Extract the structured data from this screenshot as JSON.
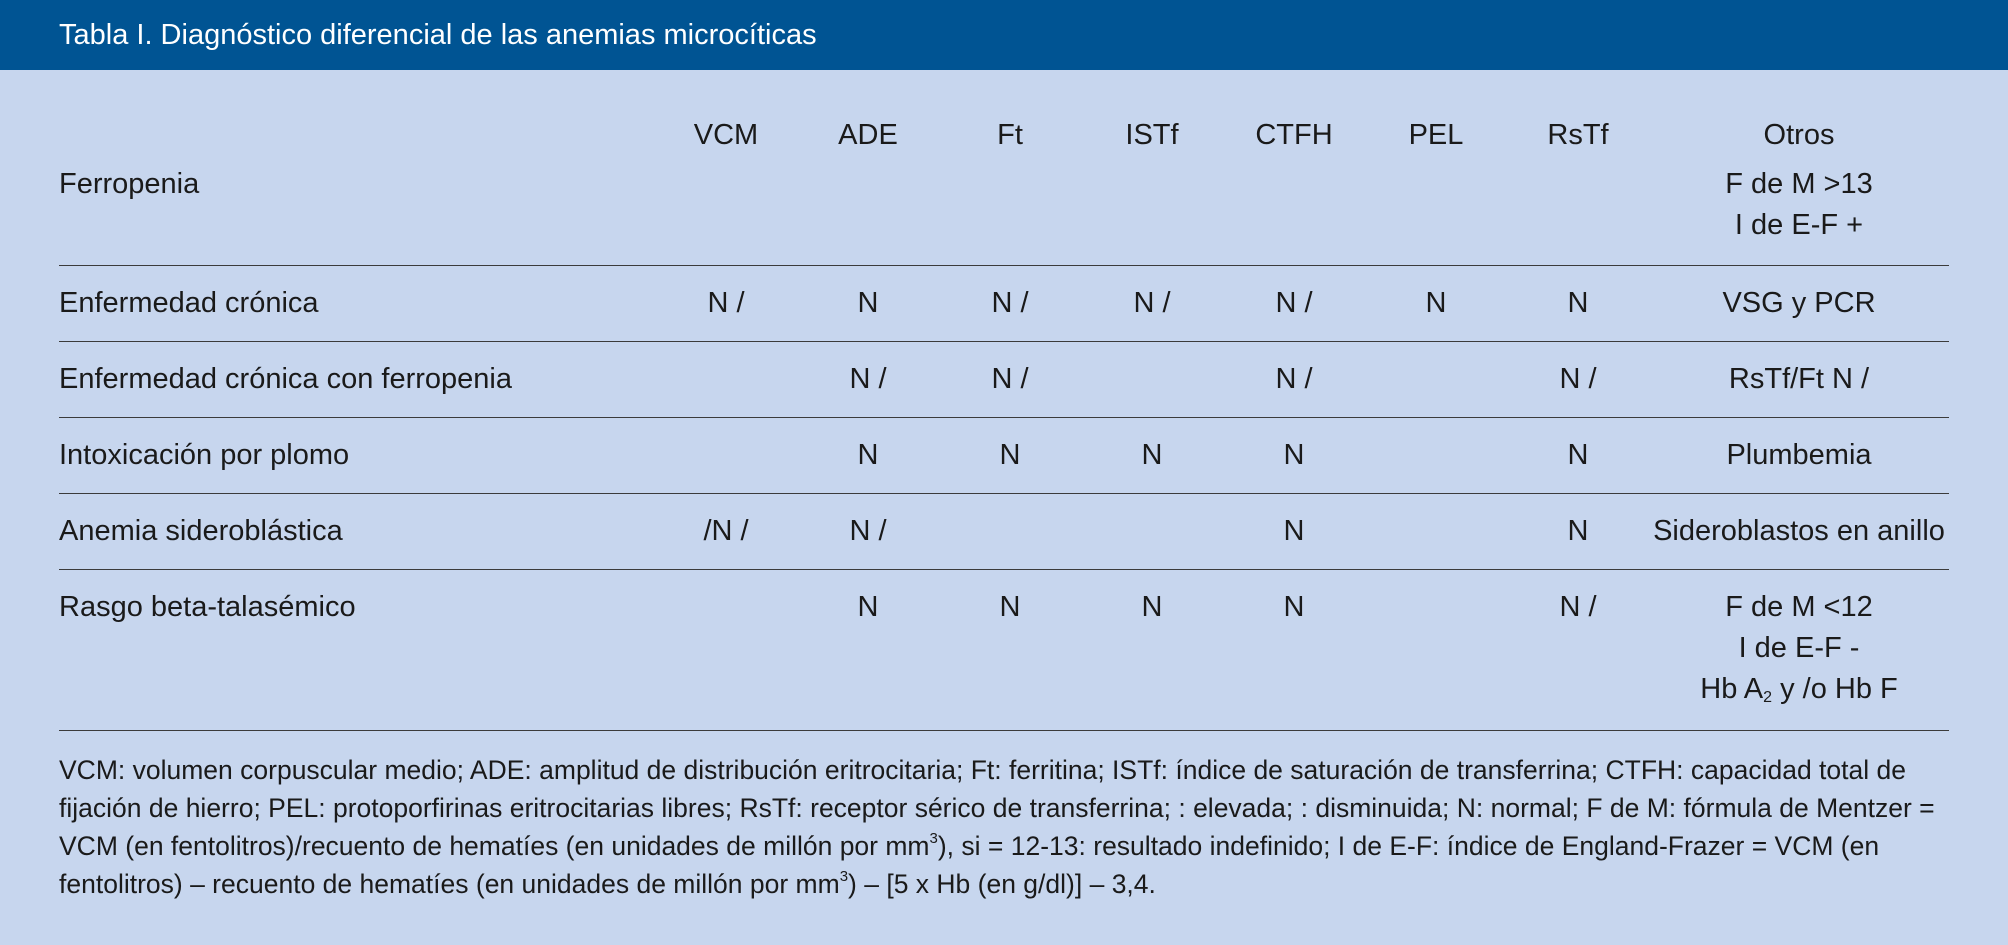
{
  "header": {
    "title": "Tabla I. Diagnóstico diferencial de las anemias microcíticas"
  },
  "table": {
    "columns": [
      "",
      "VCM",
      "ADE",
      "Ft",
      "ISTf",
      "CTFH",
      "PEL",
      "RsTf",
      "Otros"
    ],
    "rows": [
      {
        "label": "Ferropenia",
        "cells": [
          "",
          "",
          "",
          "",
          "",
          "",
          ""
        ],
        "otros": [
          "F de M >13",
          "I de E-F +"
        ]
      },
      {
        "label": "Enfermedad crónica",
        "cells": [
          "N / ",
          "N",
          "N / ",
          "N / ",
          "N / ",
          "N",
          "N"
        ],
        "otros": [
          "VSG y PCR "
        ]
      },
      {
        "label": "Enfermedad crónica con ferropenia",
        "cells": [
          "",
          "N / ",
          "N / ",
          "",
          "N / ",
          "",
          "N / "
        ],
        "otros": [
          "RsTf/Ft N / "
        ]
      },
      {
        "label": "Intoxicación por plomo",
        "cells": [
          "",
          "N",
          "N",
          "N",
          "N",
          "",
          "N"
        ],
        "otros": [
          "Plumbemia "
        ]
      },
      {
        "label": "Anemia sideroblástica",
        "cells": [
          " /N / ",
          "N / ",
          "",
          "",
          "N",
          "",
          "N"
        ],
        "otros": [
          "Sideroblastos en anillo"
        ]
      },
      {
        "label": "Rasgo beta-talasémico",
        "cells": [
          "",
          "N",
          "N",
          "N",
          "N",
          "",
          "N / "
        ],
        "otros": [
          "F de M <12",
          "I de E-F -"
        ],
        "otros_hb": {
          "prefix": " Hb A",
          "sub": "2",
          "suffix": " y /o Hb F"
        }
      }
    ]
  },
  "footnote": {
    "part1": "VCM: volumen corpuscular medio; ADE: amplitud de distribución eritrocitaria; Ft: ferritina; ISTf: índice de saturación de transferrina; CTFH: capacidad total de fijación de hierro; PEL: protoporfirinas eritrocitarias libres; RsTf: receptor sérico de transferrina; : elevada; : disminuida; N: normal; F de M: fórmula de Mentzer = VCM (en fentolitros)/recuento de hematíes (en unidades de millón por mm",
    "sup1": "3",
    "part2": "), si = 12-13: resultado indefinido; I de E-F: índice de England-Frazer = VCM (en fentolitros) – recuento de hematíes (en unidades de millón por mm",
    "sup2": "3",
    "part3": ") – [5 x Hb (en g/dl)] – 3,4."
  }
}
